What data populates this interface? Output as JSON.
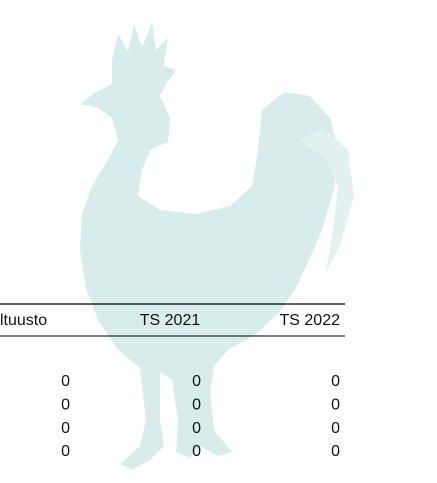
{
  "table": {
    "headers": [
      "ltuusto",
      "TS 2021",
      "TS 2022"
    ],
    "rows": [
      [
        0,
        0,
        0
      ],
      [
        0,
        0,
        0
      ],
      [
        0,
        0,
        0
      ],
      [
        0,
        0,
        0
      ]
    ]
  }
}
